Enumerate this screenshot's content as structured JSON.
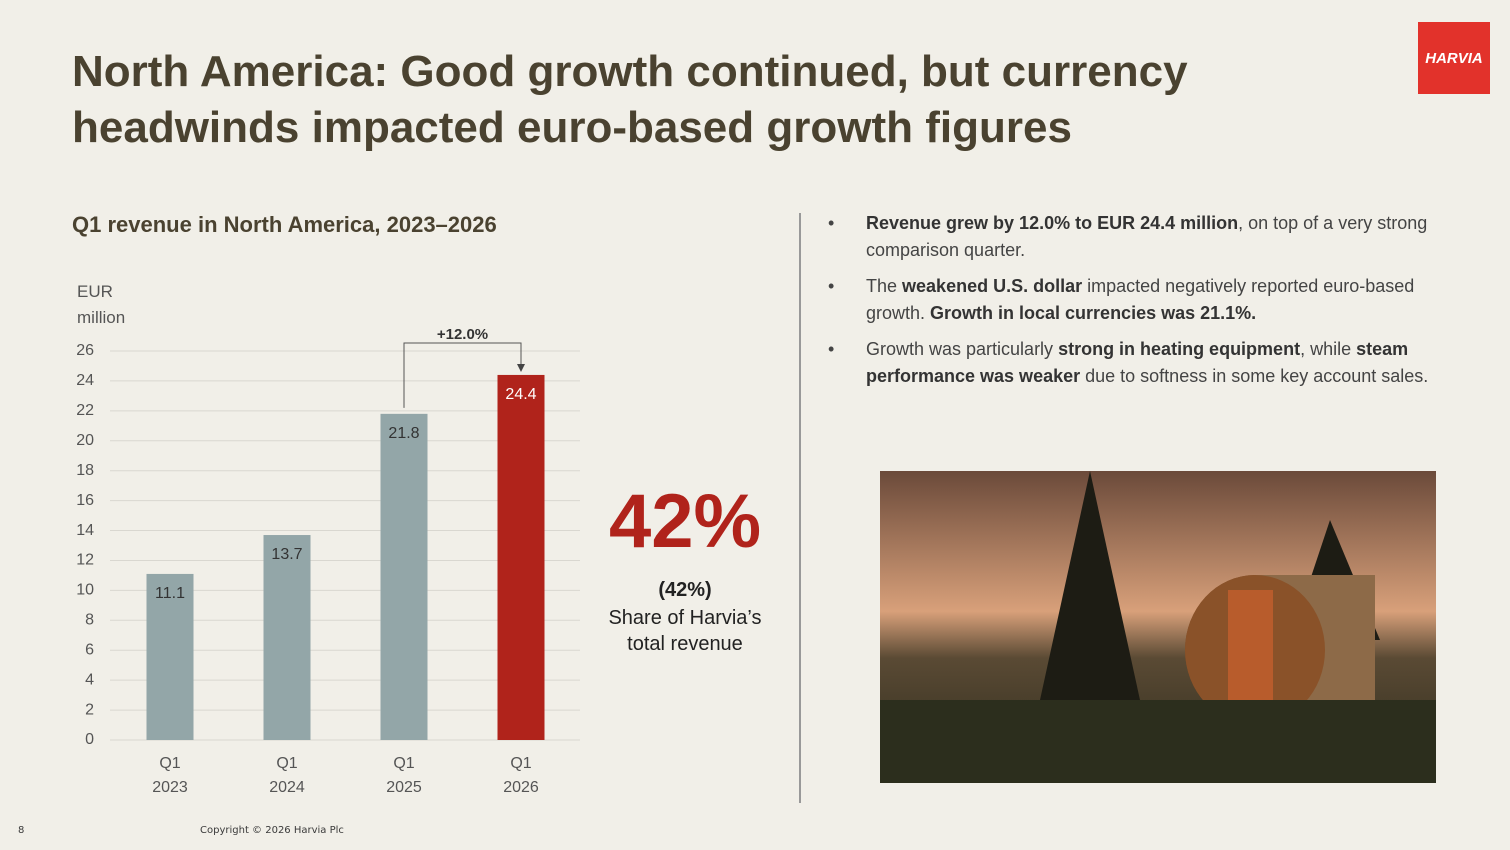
{
  "title": "North America: Good growth continued, but currency headwinds impacted euro-based growth figures",
  "logo": "HARVIA",
  "chart_data": {
    "type": "bar",
    "title": "Q1 revenue in North America, 2023–2026",
    "y_label": "EUR million",
    "categories": [
      "Q1 2023",
      "Q1 2024",
      "Q1 2025",
      "Q1 2026"
    ],
    "values": [
      11.1,
      13.7,
      21.8,
      24.4
    ],
    "colors": [
      "#93a6a8",
      "#93a6a8",
      "#93a6a8",
      "#b0231b"
    ],
    "ylim": [
      0,
      26
    ],
    "yticks": [
      0,
      2,
      4,
      6,
      8,
      10,
      12,
      14,
      16,
      18,
      20,
      22,
      24,
      26
    ],
    "grid": true,
    "annotation": "+12.0%"
  },
  "callout": {
    "value": "42%",
    "note": "(42%)",
    "text": "Share of Harvia’s total revenue"
  },
  "bullets": [
    [
      {
        "text": "Revenue grew by 12.0% to EUR 24.4 million",
        "bold": true
      },
      {
        "text": ", on top of a very strong comparison quarter.",
        "bold": false
      }
    ],
    [
      {
        "text": "The ",
        "bold": false
      },
      {
        "text": "weakened U.S. dollar",
        "bold": true
      },
      {
        "text": " impacted negatively reported euro-based growth. ",
        "bold": false
      },
      {
        "text": "Growth in local currencies was 21.1%.",
        "bold": true
      }
    ],
    [
      {
        "text": "Growth was particularly ",
        "bold": false
      },
      {
        "text": "strong in heating equipment",
        "bold": true
      },
      {
        "text": ", while ",
        "bold": false
      },
      {
        "text": "steam performance was weaker",
        "bold": true
      },
      {
        "text": " due to softness in some key account sales.",
        "bold": false
      }
    ]
  ],
  "footer": {
    "page": "8",
    "copyright": "Copyright © 2026 Harvia Plc"
  }
}
